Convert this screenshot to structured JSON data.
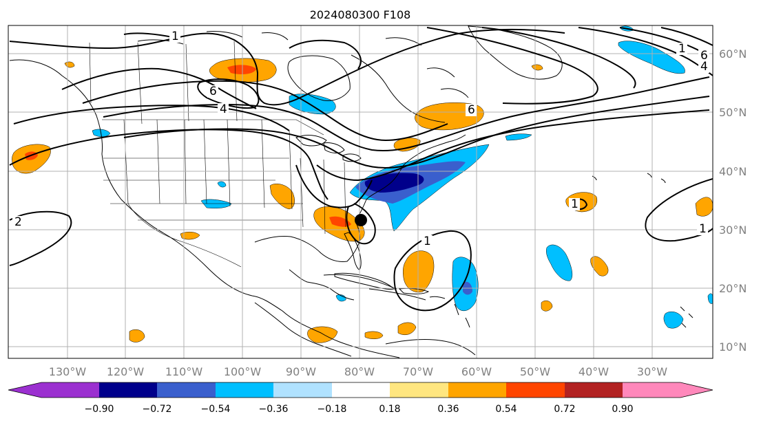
{
  "title": "2024080300 F108",
  "lon_ticks": [
    "130°W",
    "120°W",
    "110°W",
    "100°W",
    "90°W",
    "80°W",
    "70°W",
    "60°W",
    "50°W",
    "40°W",
    "30°W"
  ],
  "lat_ticks": [
    "60°N",
    "50°N",
    "40°N",
    "30°N",
    "20°N",
    "10°N"
  ],
  "colorbar": {
    "labels": [
      "−0.90",
      "−0.72",
      "−0.54",
      "−0.36",
      "−0.18",
      "0.18",
      "0.36",
      "0.54",
      "0.72",
      "0.90"
    ],
    "colors": [
      "#9b30d0",
      "#00008b",
      "#3a5fcd",
      "#00bfff",
      "#b0e2ff",
      "#ffffff",
      "#ffe680",
      "#ffa500",
      "#ff4500",
      "#b22222",
      "#ff88bb"
    ]
  },
  "contour_labels": [
    "1",
    "6",
    "4",
    "6",
    "1",
    "1",
    "6",
    "4",
    "2",
    "1",
    "1"
  ],
  "colors": {
    "land_line": "#000000",
    "grid": "#b0b0b0",
    "orange": "#ffa500",
    "red": "#ff4500",
    "light_blue": "#00bfff",
    "navy": "#00008b",
    "mid_blue": "#3a5fcd"
  }
}
